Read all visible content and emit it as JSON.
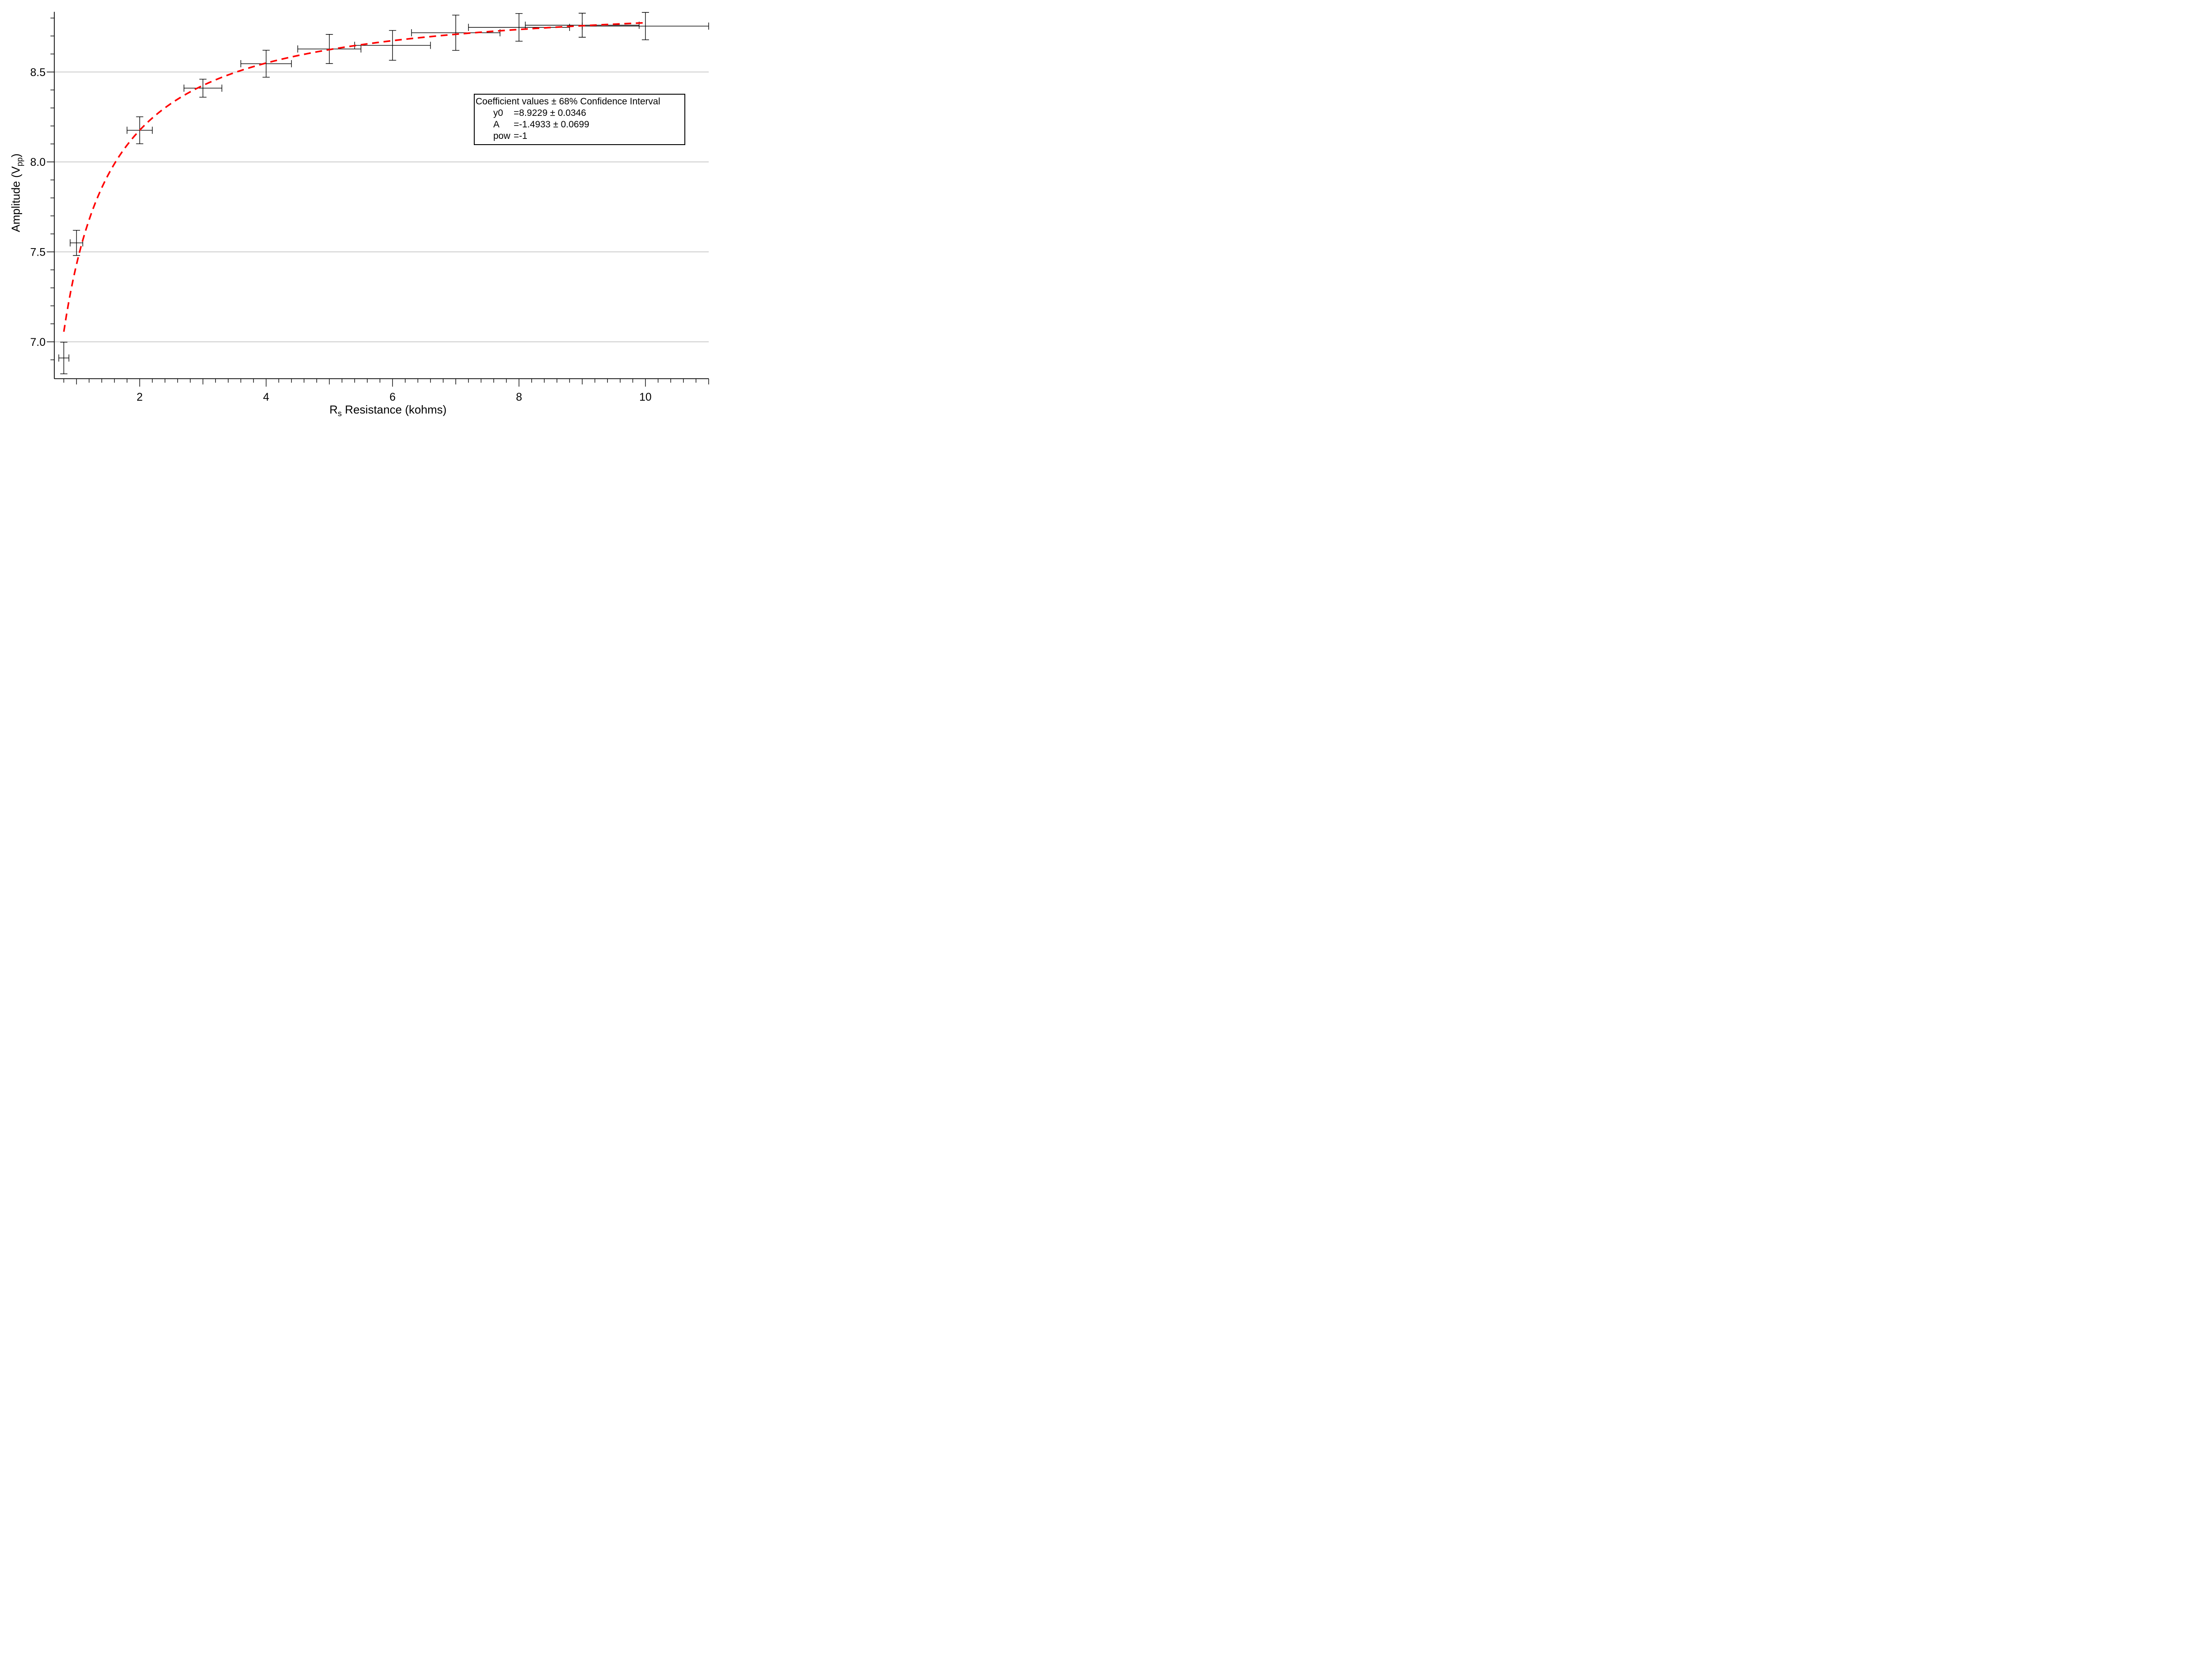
{
  "figure": {
    "background": "#ffffff",
    "xlabel_parts": {
      "pre": "R",
      "sub": "s",
      "post": " Resistance (kohms)"
    },
    "ylabel_parts": {
      "pre": "Amplitude (V",
      "sub": "pp",
      "post": ")"
    },
    "annotation_box": {
      "title": "Coefficient values ± 68% Confidence Interval",
      "rows": [
        {
          "name": "y0",
          "value": "=8.9229 ± 0.0346"
        },
        {
          "name": "A",
          "value": "=-1.4933 ± 0.0699"
        },
        {
          "name": "pow",
          "value": "=-1"
        }
      ]
    }
  },
  "chart_data": {
    "type": "scatter",
    "title": "",
    "xlabel": "Rs Resistance (kohms)",
    "ylabel": "Amplitude (Vpp)",
    "xlim": [
      0.65,
      11.0
    ],
    "ylim": [
      6.8,
      8.83
    ],
    "grid": "horizontal-at-y-majors",
    "legend": "none",
    "x_major_ticks": [
      2,
      4,
      6,
      8,
      10
    ],
    "x_major_tick_labels": [
      "2",
      "4",
      "6",
      "8",
      "10"
    ],
    "x_medium_ticks": [
      1,
      3,
      5,
      7,
      9,
      11
    ],
    "x_minor_tick_step": 0.2,
    "x_minor_tick_range": [
      0.8,
      11.0
    ],
    "y_major_ticks": [
      7.0,
      7.5,
      8.0,
      8.5
    ],
    "y_major_tick_labels": [
      "7.0",
      "7.5",
      "8.0",
      "8.5"
    ],
    "y_minor_tick_step": 0.1,
    "y_minor_tick_range": [
      6.9,
      8.8
    ],
    "colors": {
      "data": "#000000",
      "fit": "#ff0000",
      "grid": "#b2b2b2",
      "axis": "#000000",
      "background": "#ffffff"
    },
    "points": [
      {
        "x": 0.8,
        "y": 6.91,
        "xerr": 0.08,
        "yerr": 0.088
      },
      {
        "x": 1.0,
        "y": 7.55,
        "xerr": 0.1,
        "yerr": 0.07
      },
      {
        "x": 2.0,
        "y": 8.176,
        "xerr": 0.2,
        "yerr": 0.075
      },
      {
        "x": 3.0,
        "y": 8.41,
        "xerr": 0.3,
        "yerr": 0.05
      },
      {
        "x": 4.0,
        "y": 8.546,
        "xerr": 0.4,
        "yerr": 0.075
      },
      {
        "x": 5.0,
        "y": 8.628,
        "xerr": 0.5,
        "yerr": 0.081
      },
      {
        "x": 6.0,
        "y": 8.648,
        "xerr": 0.6,
        "yerr": 0.083
      },
      {
        "x": 7.0,
        "y": 8.718,
        "xerr": 0.7,
        "yerr": 0.098
      },
      {
        "x": 8.0,
        "y": 8.748,
        "xerr": 0.8,
        "yerr": 0.077
      },
      {
        "x": 9.0,
        "y": 8.76,
        "xerr": 0.9,
        "yerr": 0.067
      },
      {
        "x": 10.0,
        "y": 8.755,
        "xerr": 1.0,
        "yerr": 0.076
      }
    ],
    "fit": {
      "model": "y = y0 + A*x^pow",
      "y0": 8.9229,
      "A": -1.4933,
      "pow": -1,
      "x_start": 0.8,
      "x_end": 10.0,
      "style": "dashed",
      "color": "#ff0000"
    }
  }
}
